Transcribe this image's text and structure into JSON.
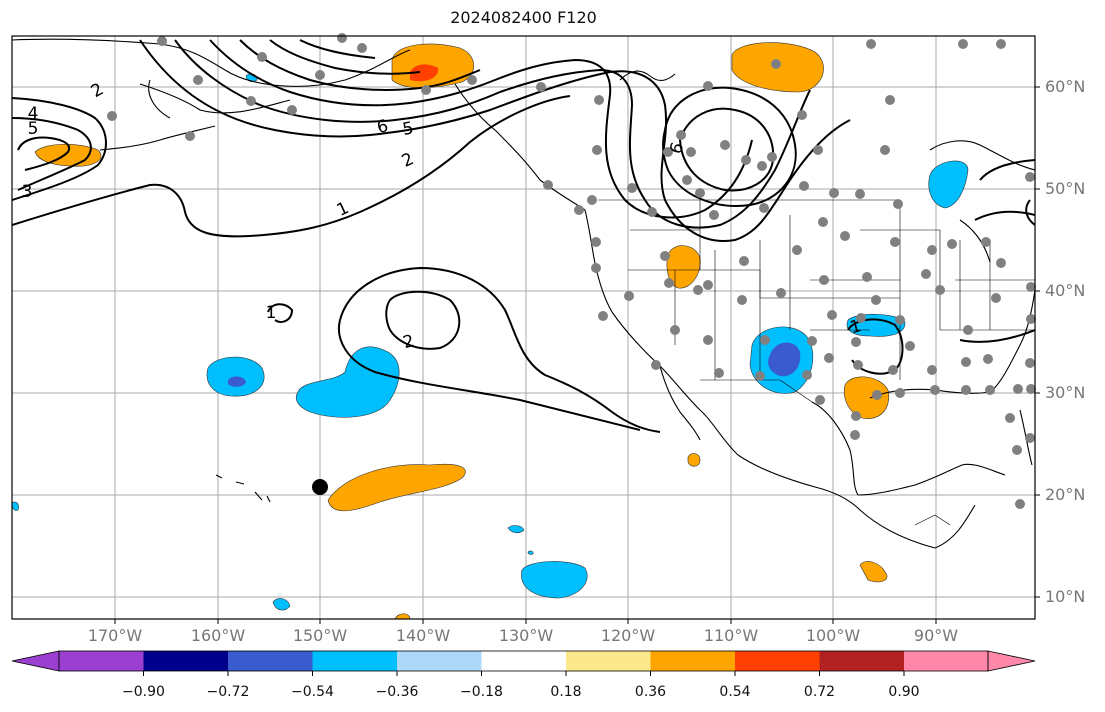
{
  "title": "2024082400 F120",
  "lat_labels": [
    "60°N",
    "50°N",
    "40°N",
    "30°N",
    "20°N",
    "10°N"
  ],
  "lon_labels": [
    "170°W",
    "160°W",
    "150°W",
    "140°W",
    "130°W",
    "120°W",
    "110°W",
    "100°W",
    "90°W"
  ],
  "contour_labels": [
    "2",
    "4",
    "5",
    "3",
    "1",
    "6",
    "5",
    "2",
    "2",
    "1",
    "6",
    "1"
  ],
  "colorbar": {
    "tick_labels": [
      "−0.90",
      "−0.72",
      "−0.54",
      "−0.36",
      "−0.18",
      "0.18",
      "0.36",
      "0.54",
      "0.72",
      "0.90"
    ],
    "colors": [
      "#9a3fcf",
      "#00008b",
      "#3a5bd0",
      "#00bfff",
      "#add8f7",
      "#ffffff",
      "#fce98b",
      "#ffa500",
      "#ff4000",
      "#b22222",
      "#ff88aa"
    ]
  },
  "fill_colors": {
    "orange": "#ffa500",
    "yellow": "#fce98b",
    "red": "#ff4000",
    "cyan": "#00bfff",
    "light_blue": "#add8f7",
    "blue": "#3a5bd0"
  }
}
